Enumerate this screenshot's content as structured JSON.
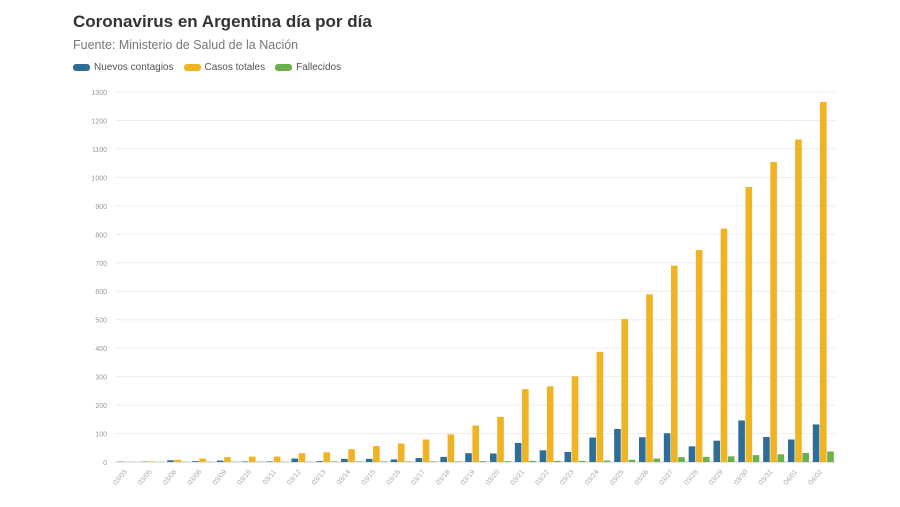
{
  "chart_data": {
    "type": "bar",
    "title": "Coronavirus en Argentina día por día",
    "subtitle": "Fuente: Ministerio de Salud de la Nación",
    "categories": [
      "03/03",
      "03/05",
      "03/06",
      "03/08",
      "03/09",
      "03/10",
      "03/11",
      "03/12",
      "03/13",
      "03/14",
      "03/15",
      "03/16",
      "03/17",
      "03/18",
      "03/19",
      "03/20",
      "03/21",
      "03/22",
      "03/23",
      "03/24",
      "03/25",
      "03/26",
      "03/27",
      "03/28",
      "03/29",
      "03/30",
      "03/31",
      "04/01",
      "04/02"
    ],
    "series": [
      {
        "name": "Nuevos contagios",
        "color": "#2e6e96",
        "values": [
          1,
          1,
          6,
          3,
          5,
          2,
          2,
          12,
          3,
          11,
          11,
          9,
          14,
          18,
          31,
          30,
          67,
          41,
          35,
          86,
          116,
          87,
          101,
          55,
          75,
          146,
          88,
          79,
          132
        ]
      },
      {
        "name": "Casos totales",
        "color": "#f0b323",
        "values": [
          1,
          2,
          8,
          12,
          17,
          19,
          19,
          31,
          34,
          45,
          56,
          65,
          79,
          97,
          128,
          158,
          256,
          266,
          301,
          387,
          502,
          589,
          690,
          745,
          820,
          966,
          1054,
          1133,
          1265
        ]
      },
      {
        "name": "Fallecidos",
        "color": "#6ab04c",
        "values": [
          0,
          0,
          1,
          1,
          1,
          1,
          1,
          1,
          2,
          2,
          2,
          2,
          2,
          2,
          3,
          3,
          4,
          4,
          4,
          5,
          8,
          12,
          17,
          18,
          20,
          24,
          27,
          32,
          37
        ]
      }
    ],
    "ylim": [
      0,
      1300
    ],
    "yticks": [
      0,
      100,
      200,
      300,
      400,
      500,
      600,
      700,
      800,
      900,
      1000,
      1100,
      1200,
      1300
    ],
    "grid": true,
    "legend": "top-left"
  }
}
